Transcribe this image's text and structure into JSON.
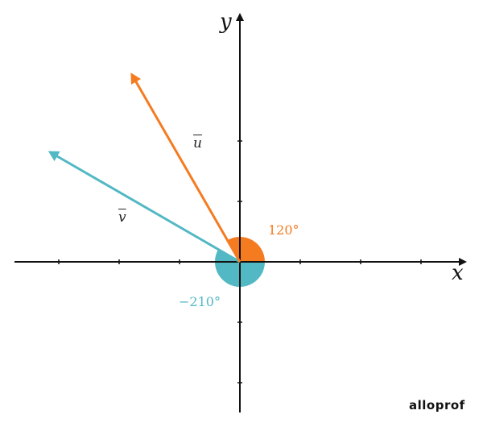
{
  "axes": {
    "x_label": "x",
    "y_label": "y"
  },
  "vectors": [
    {
      "name": "u",
      "label": "u",
      "angle_deg": 120,
      "angle_label": "120°",
      "color": "#F47B20"
    },
    {
      "name": "v",
      "label": "v",
      "angle_deg": -210,
      "angle_label": "−210°",
      "color": "#52B8C4"
    }
  ],
  "logo": "alloprof"
}
